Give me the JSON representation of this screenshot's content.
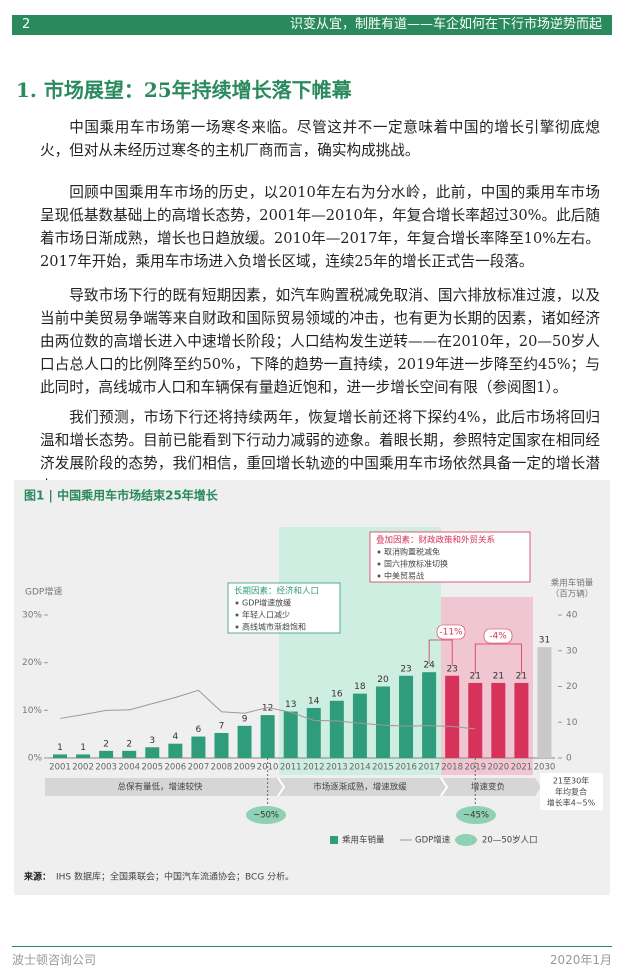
{
  "header": {
    "page_number": "2",
    "title": "识变从宜，制胜有道——车企如何在下行市场逆势而起"
  },
  "section_title": "1. 市场展望：25年持续增长落下帷幕",
  "paragraphs": [
    "中国乘用车市场第一场寒冬来临。尽管这并不一定意味着中国的增长引擎彻底熄火，但对从未经历过寒冬的主机厂商而言，确实构成挑战。",
    "回顾中国乘用车市场的历史，以2010年左右为分水岭，此前，中国的乘用车市场呈现低基数基础上的高增长态势，2001年—2010年，年复合增长率超过30%。此后随着市场日渐成熟，增长也日趋放缓。2010年—2017年，年复合增长率降至10%左右。2017年开始，乘用车市场进入负增长区域，连续25年的增长正式告一段落。",
    "导致市场下行的既有短期因素，如汽车购置税减免取消、国六排放标准过渡，以及当前中美贸易争端等来自财政和国际贸易领域的冲击，也有更为长期的因素，诸如经济由两位数的高增长进入中速增长阶段；人口结构发生逆转——在2010年，20—50岁人口占总人口的比例降至约50%，下降的趋势一直持续，2019年进一步降至约45%；与此同时，高线城市人口和车辆保有量趋近饱和，进一步增长空间有限（参阅图1）。",
    "我们预测，市场下行还将持续两年，恢复增长前还将下探约4%，此后市场将回归温和增长态势。目前已能看到下行动力减弱的迹象。着眼长期，参照特定国家在相同经济发展阶段的态势，我们相信，重回增长轨迹的中国乘用车市场依然具备一定的增长潜力。"
  ],
  "chart_data": {
    "type": "bar",
    "title": "图1 | 中国乘用车市场结束25年增长",
    "categories": [
      "2001",
      "2002",
      "2003",
      "2004",
      "2005",
      "2006",
      "2007",
      "2008",
      "2009",
      "2010",
      "2011",
      "2012",
      "2013",
      "2014",
      "2015",
      "2016",
      "2017",
      "2018",
      "2019",
      "2020",
      "2021",
      "2030"
    ],
    "series": [
      {
        "name": "乘用车销量",
        "type": "bar",
        "axis": "y2",
        "color": "#2f9c7c",
        "colors": [
          "#2f9c7c",
          "#2f9c7c",
          "#2f9c7c",
          "#2f9c7c",
          "#2f9c7c",
          "#2f9c7c",
          "#2f9c7c",
          "#2f9c7c",
          "#2f9c7c",
          "#2f9c7c",
          "#2f9c7c",
          "#2f9c7c",
          "#2f9c7c",
          "#2f9c7c",
          "#2f9c7c",
          "#2f9c7c",
          "#2f9c7c",
          "#d7325a",
          "#d7325a",
          "#d7325a",
          "#d7325a",
          "#c9c9c9"
        ],
        "values": [
          1,
          1,
          2,
          2,
          3,
          4,
          6,
          7,
          9,
          12,
          13,
          14,
          16,
          18,
          20,
          23,
          24,
          23,
          21,
          21,
          21,
          31
        ]
      },
      {
        "name": "GDP增速",
        "type": "line",
        "color": "#9a9a9a",
        "values": [
          8.3,
          9.1,
          10.0,
          10.1,
          11.4,
          12.7,
          14.2,
          9.7,
          9.4,
          10.6,
          9.6,
          7.9,
          7.8,
          7.3,
          6.9,
          6.7,
          6.8,
          6.6,
          6.1,
          null,
          null,
          null
        ]
      }
    ],
    "ylim": [
      0,
      30
    ],
    "yticks": [
      {
        "value": 0,
        "label": "0%"
      },
      {
        "value": 10,
        "label": "10%"
      },
      {
        "value": 20,
        "label": "20%"
      },
      {
        "value": 30,
        "label": "30%"
      }
    ],
    "y2lim": [
      0,
      40
    ],
    "y2ticks": [
      0,
      10,
      20,
      30,
      40
    ],
    "y_label": "GDP增速",
    "y2_label": [
      "乘用车销量",
      "（百万辆）"
    ],
    "callouts": [
      {
        "title": "长期因素：经济和人口",
        "items": [
          "GDP增速放缓",
          "年轻人口减少",
          "高线城市渐趋饱和"
        ]
      },
      {
        "title": "叠加因素：财政政策和外贸关系",
        "items": [
          "取消购置税减免",
          "国六排放标准切换",
          "中美贸易战"
        ]
      }
    ],
    "change_labels": [
      "-11%",
      "-4%"
    ],
    "phases": [
      "总保有量低，增速较快",
      "市场逐渐成熟，增速放缓",
      "增速变负"
    ],
    "population_labels": [
      "~50%",
      "~45%"
    ],
    "annotation_2030": [
      "21至30年",
      "年均复合",
      "增长率4~5%"
    ],
    "population_legend": "20—50岁人口",
    "source_label": "来源：",
    "source": "IHS 数据库；全国乘联会；中国汽车流通协会；BCG 分析。"
  },
  "footer": {
    "left": "波士顿咨询公司",
    "right": "2020年1月"
  }
}
